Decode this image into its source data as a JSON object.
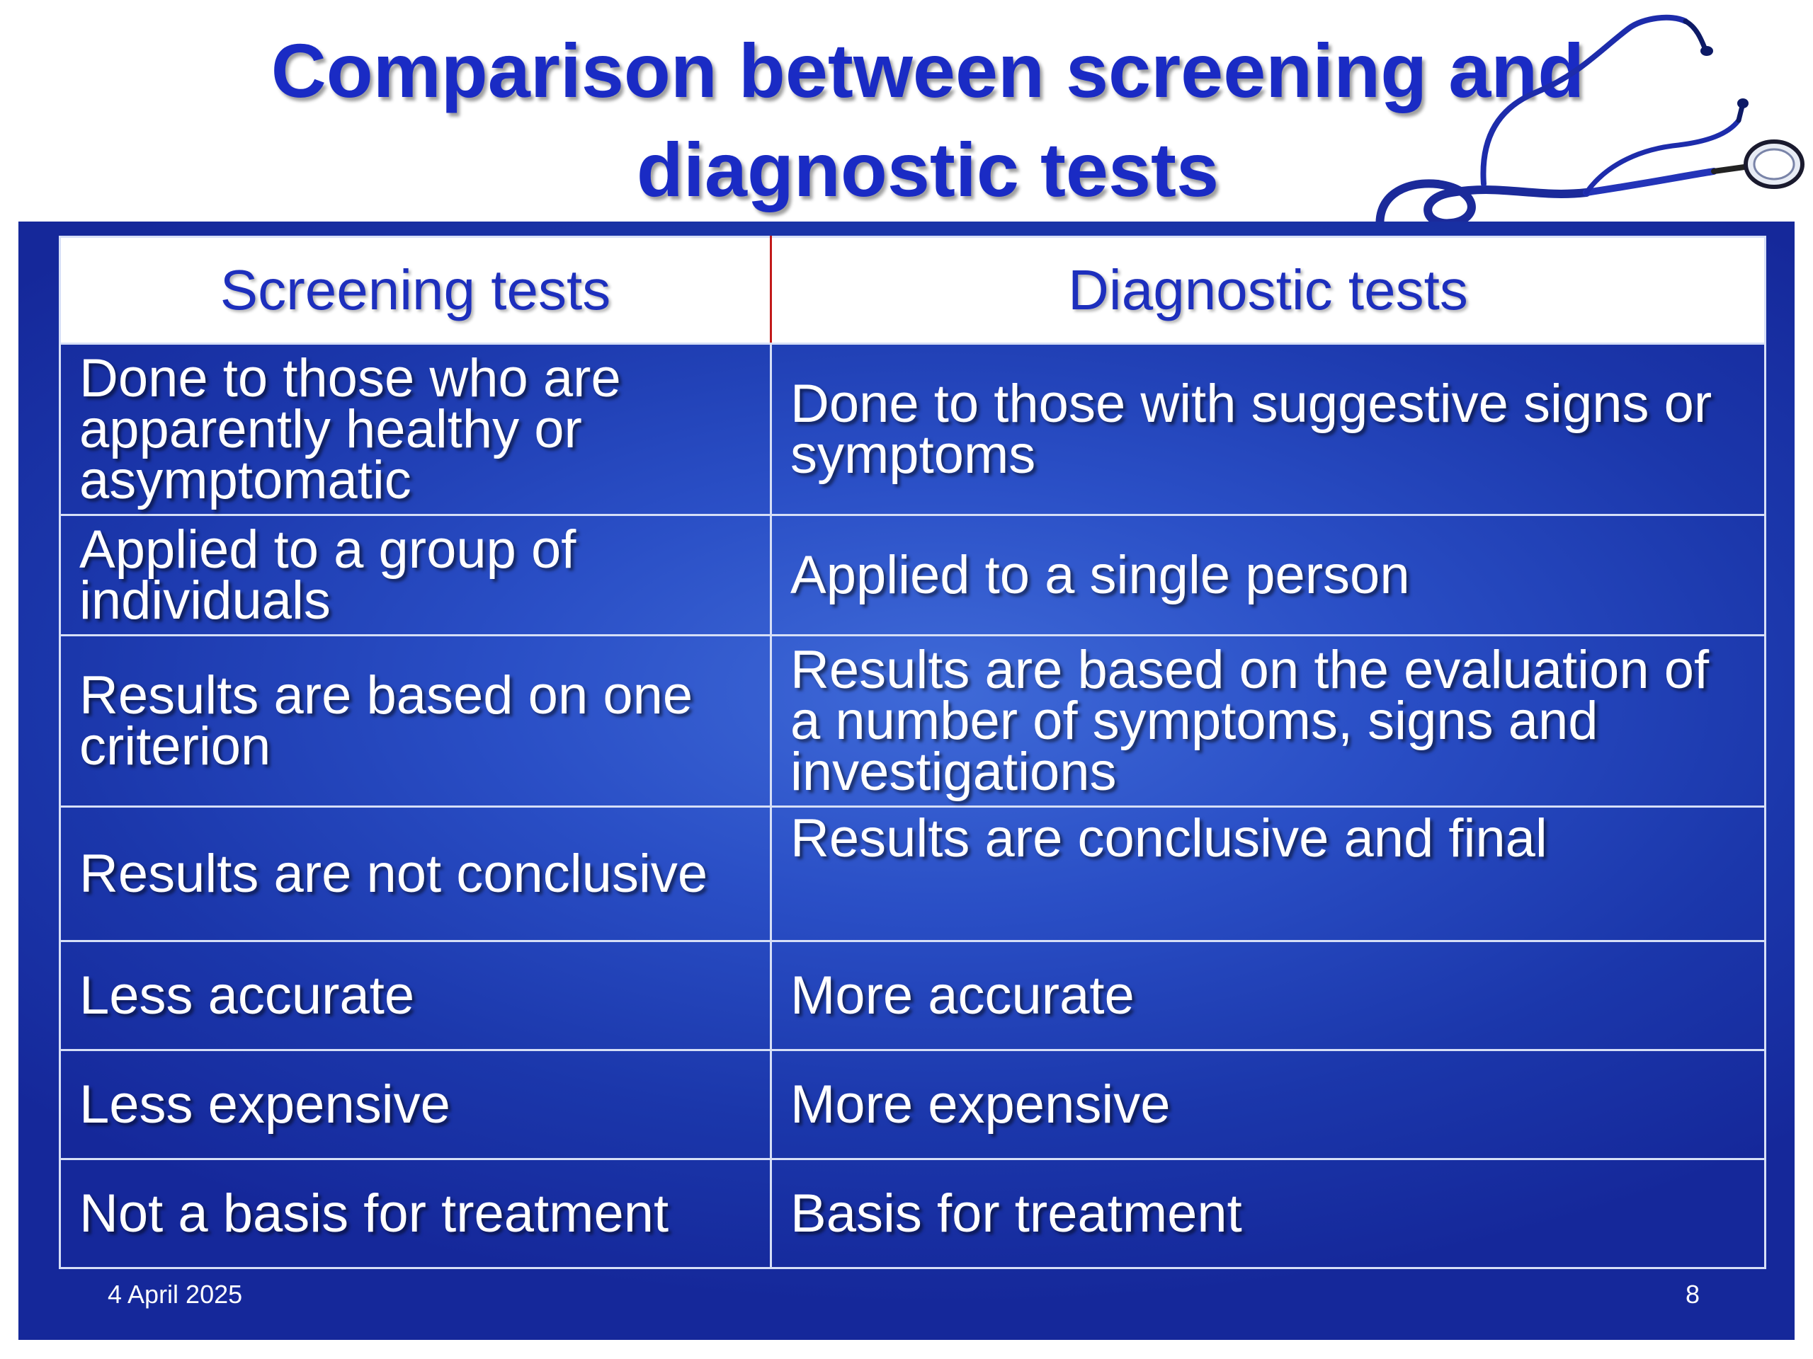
{
  "slide": {
    "title_line1": "Comparison between screening and",
    "title_line2": "diagnostic tests",
    "decoration_icon": "stethoscope-icon",
    "accent_color": "#1a2bc4",
    "panel_color": "#2244bb"
  },
  "table": {
    "headers": [
      "Screening tests",
      "Diagnostic tests"
    ],
    "rows": [
      [
        "Done to those who are apparently healthy or asymptomatic",
        "Done to those with suggestive signs or symptoms"
      ],
      [
        "Applied to a group of individuals",
        "Applied to a single person"
      ],
      [
        "Results are based on one criterion",
        "Results are based on the evaluation of a number of symptoms, signs and investigations"
      ],
      [
        "Results are not conclusive",
        "Results are conclusive and final"
      ],
      [
        "Less accurate",
        "More accurate"
      ],
      [
        "Less expensive",
        "More expensive"
      ],
      [
        "Not a basis for treatment",
        "Basis for treatment"
      ]
    ]
  },
  "footer": {
    "date": "4 April 2025",
    "page_number": "8"
  }
}
